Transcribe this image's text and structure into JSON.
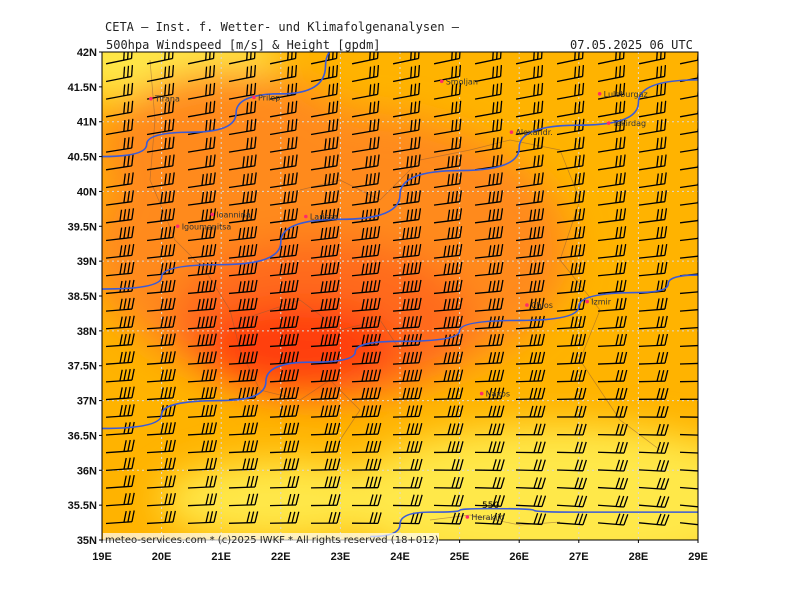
{
  "header": {
    "title": "CETA — Inst. f. Wetter- und Klimafolgenanalysen —",
    "parameter": "500hpa Windspeed [m/s] & Height [gpdm]",
    "valid_time": "07.05.2025 06 UTC"
  },
  "footer": {
    "copyright": "meteo-services.com * (c)2025 IWKF * All rights reserved (18+012)"
  },
  "map": {
    "lon_range": [
      19,
      29
    ],
    "lat_range": [
      35,
      42
    ],
    "lon_labels": [
      "19E",
      "20E",
      "21E",
      "22E",
      "23E",
      "24E",
      "25E",
      "26E",
      "27E",
      "28E",
      "29E"
    ],
    "lat_labels": [
      "42N",
      "41.5N",
      "41N",
      "40.5N",
      "40N",
      "39.5N",
      "39N",
      "38.5N",
      "38N",
      "37.5N",
      "37N",
      "36.5N",
      "36N",
      "35.5N",
      "35N"
    ],
    "contour_label": "550",
    "colors": {
      "low": "#ffe84a",
      "mid": "#ffb300",
      "high": "#ff8a1a",
      "higher": "#ff6a1a",
      "max": "#ff3d0a",
      "height_contour": "#3a5ad8",
      "barbs": "#000000"
    },
    "cities": [
      {
        "name": "Tirana",
        "lon": 19.82,
        "lat": 41.33
      },
      {
        "name": "Prilep",
        "lon": 21.55,
        "lat": 41.35
      },
      {
        "name": "Smoljan",
        "lon": 24.7,
        "lat": 41.58
      },
      {
        "name": "Luleburgaz",
        "lon": 27.35,
        "lat": 41.4
      },
      {
        "name": "Alexandr.",
        "lon": 25.87,
        "lat": 40.85
      },
      {
        "name": "Tekirdag",
        "lon": 27.5,
        "lat": 40.98
      },
      {
        "name": "Ioannina",
        "lon": 20.85,
        "lat": 39.67
      },
      {
        "name": "Larissa",
        "lon": 22.42,
        "lat": 39.64
      },
      {
        "name": "Igoumenitsa",
        "lon": 20.27,
        "lat": 39.5
      },
      {
        "name": "Chios",
        "lon": 26.13,
        "lat": 38.37
      },
      {
        "name": "Izmir",
        "lon": 27.14,
        "lat": 38.42
      },
      {
        "name": "Naxos",
        "lon": 25.37,
        "lat": 37.1
      },
      {
        "name": "Heraklio",
        "lon": 25.13,
        "lat": 35.33
      }
    ],
    "wind_speed_levels": [
      {
        "level": 0,
        "color": "#ffe84a"
      },
      {
        "level": 1,
        "color": "#ffb300"
      },
      {
        "level": 2,
        "color": "#ff8a1a"
      },
      {
        "level": 3,
        "color": "#ff6a1a"
      },
      {
        "level": 4,
        "color": "#ff3d0a"
      }
    ]
  }
}
